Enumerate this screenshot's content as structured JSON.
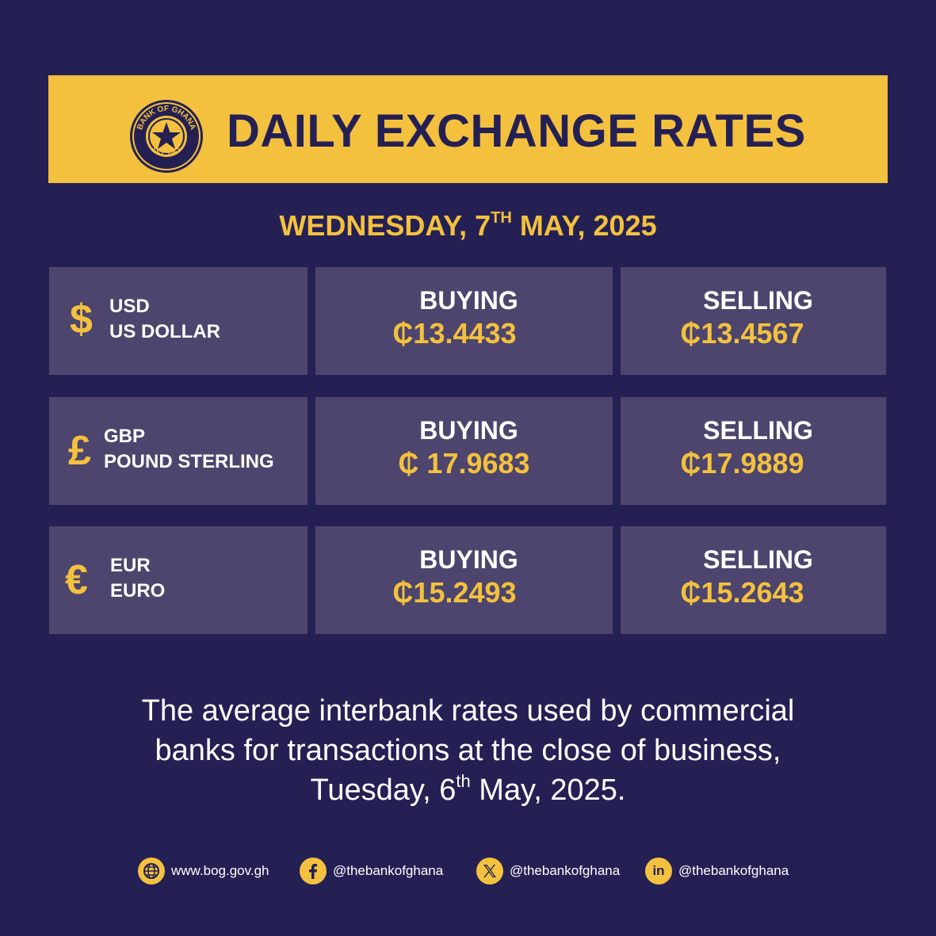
{
  "header": {
    "logo_text_top": "BANK OF GHANA",
    "logo_text_bottom": "EST. 1957",
    "title": "DAILY EXCHANGE RATES"
  },
  "date": {
    "weekday_prefix": "WEDNESDAY, 7",
    "suffix": "TH",
    "rest": " MAY, 2025"
  },
  "rates": [
    {
      "symbol": "$",
      "code": "USD",
      "name": "US DOLLAR",
      "buying_label": "BUYING",
      "buying": "₵13.4433",
      "selling_label": "SELLING",
      "selling": "₵13.4567"
    },
    {
      "symbol": "£",
      "code": "GBP",
      "name": "POUND STERLING",
      "buying_label": "BUYING",
      "buying": "₵ 17.9683",
      "selling_label": "SELLING",
      "selling": "₵17.9889"
    },
    {
      "symbol": "€",
      "code": "EUR",
      "name": "EURO",
      "buying_label": "BUYING",
      "buying": "₵15.2493",
      "selling_label": "SELLING",
      "selling": "₵15.2643"
    }
  ],
  "footnote": {
    "line1": "The average interbank rates used by commercial",
    "line2": "banks for transactions at the close of business,",
    "line3_prefix": "Tuesday, 6",
    "line3_suffix": "th",
    "line3_rest": " May, 2025."
  },
  "social": [
    {
      "icon": "globe-icon",
      "text": "www.bog.gov.gh"
    },
    {
      "icon": "facebook-icon",
      "text": "@thebankofghana"
    },
    {
      "icon": "x-icon",
      "text": "@thebankofghana"
    },
    {
      "icon": "linkedin-icon",
      "text": "@thebankofghana"
    }
  ],
  "colors": {
    "background": "#252054",
    "accent": "#f3c13e",
    "cell": "#4d456d"
  }
}
